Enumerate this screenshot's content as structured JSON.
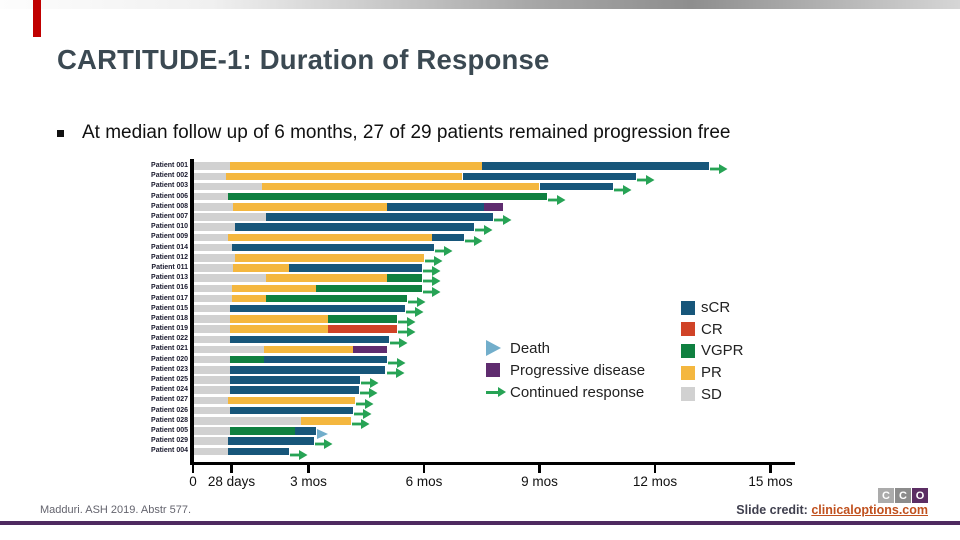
{
  "slide": {
    "title": "CARTITUDE-1: Duration of Response",
    "bullet": "At median follow up of 6 months, 27 of 29 patients remained progression free"
  },
  "chart_data": {
    "type": "bar",
    "subtype": "swimmer-plot",
    "x_axis": {
      "unit": "months",
      "min": 0,
      "max": 15.5,
      "ticks": [
        {
          "m": 0,
          "label": "0"
        },
        {
          "m": 1,
          "label": "28 days"
        },
        {
          "m": 3,
          "label": "3 mos"
        },
        {
          "m": 6,
          "label": "6 mos"
        },
        {
          "m": 9,
          "label": "9 mos"
        },
        {
          "m": 12,
          "label": "12 mos"
        },
        {
          "m": 15,
          "label": "15 mos"
        }
      ]
    },
    "colors": {
      "sCR": "#17567a",
      "CR": "#d04327",
      "VGPR": "#0f8040",
      "PR": "#f4b73f",
      "SD": "#d1d1d1",
      "PD": "#5f2c6f",
      "death": "#72aecb",
      "arrow": "#27a355"
    },
    "legend": [
      {
        "key": "sCR",
        "label": "sCR",
        "color": "#17567a"
      },
      {
        "key": "CR",
        "label": "CR",
        "color": "#d04327"
      },
      {
        "key": "VGPR",
        "label": "VGPR",
        "color": "#0f8040"
      },
      {
        "key": "PR",
        "label": "PR",
        "color": "#f4b73f"
      },
      {
        "key": "SD",
        "label": "SD",
        "color": "#d1d1d1"
      }
    ],
    "annotations": {
      "death": "Death",
      "pd": "Progressive disease",
      "cont": "Continued response"
    },
    "rows": [
      {
        "label": "Patient 001",
        "segments": [
          [
            "SD",
            0.95
          ],
          [
            "PR",
            7.5
          ],
          [
            "sCR",
            13.4
          ]
        ],
        "marker": "arrow"
      },
      {
        "label": "Patient 002",
        "segments": [
          [
            "SD",
            0.85
          ],
          [
            "PR",
            7.0
          ],
          [
            "sCR",
            11.5
          ]
        ],
        "marker": "arrow"
      },
      {
        "label": "Patient 003",
        "segments": [
          [
            "SD",
            1.8
          ],
          [
            "PR",
            9.0
          ],
          [
            "sCR",
            10.9
          ]
        ],
        "marker": "arrow"
      },
      {
        "label": "Patient 006",
        "segments": [
          [
            "SD",
            0.9
          ],
          [
            "VGPR",
            9.2
          ]
        ],
        "marker": "arrow"
      },
      {
        "label": "Patient 008",
        "segments": [
          [
            "SD",
            1.05
          ],
          [
            "PR",
            5.05
          ],
          [
            "sCR",
            7.55
          ],
          [
            "PD",
            8.05
          ]
        ],
        "marker": "none"
      },
      {
        "label": "Patient 007",
        "segments": [
          [
            "SD",
            1.9
          ],
          [
            "sCR",
            7.8
          ]
        ],
        "marker": "arrow"
      },
      {
        "label": "Patient 010",
        "segments": [
          [
            "SD",
            1.1
          ],
          [
            "sCR",
            7.3
          ]
        ],
        "marker": "arrow"
      },
      {
        "label": "Patient 009",
        "segments": [
          [
            "SD",
            0.9
          ],
          [
            "PR",
            6.2
          ],
          [
            "sCR",
            7.05
          ]
        ],
        "marker": "arrow"
      },
      {
        "label": "Patient 014",
        "segments": [
          [
            "SD",
            1.0
          ],
          [
            "sCR",
            6.25
          ]
        ],
        "marker": "arrow"
      },
      {
        "label": "Patient 012",
        "segments": [
          [
            "SD",
            1.1
          ],
          [
            "PR",
            6.0
          ]
        ],
        "marker": "arrow"
      },
      {
        "label": "Patient 011",
        "segments": [
          [
            "SD",
            1.05
          ],
          [
            "PR",
            2.5
          ],
          [
            "sCR",
            5.95
          ]
        ],
        "marker": "arrow"
      },
      {
        "label": "Patient 013",
        "segments": [
          [
            "SD",
            1.9
          ],
          [
            "PR",
            5.05
          ],
          [
            "VGPR",
            5.95
          ]
        ],
        "marker": "arrow"
      },
      {
        "label": "Patient 016",
        "segments": [
          [
            "SD",
            1.0
          ],
          [
            "PR",
            3.2
          ],
          [
            "VGPR",
            5.95
          ]
        ],
        "marker": "arrow"
      },
      {
        "label": "Patient 017",
        "segments": [
          [
            "SD",
            1.0
          ],
          [
            "PR",
            1.9
          ],
          [
            "VGPR",
            5.55
          ]
        ],
        "marker": "arrow"
      },
      {
        "label": "Patient 015",
        "segments": [
          [
            "SD",
            0.95
          ],
          [
            "sCR",
            5.5
          ]
        ],
        "marker": "arrow"
      },
      {
        "label": "Patient 018",
        "segments": [
          [
            "SD",
            0.95
          ],
          [
            "PR",
            3.5
          ],
          [
            "VGPR",
            5.3
          ]
        ],
        "marker": "arrow"
      },
      {
        "label": "Patient 019",
        "segments": [
          [
            "SD",
            0.95
          ],
          [
            "PR",
            3.5
          ],
          [
            "CR",
            5.3
          ]
        ],
        "marker": "arrow"
      },
      {
        "label": "Patient 022",
        "segments": [
          [
            "SD",
            0.95
          ],
          [
            "sCR",
            5.1
          ]
        ],
        "marker": "arrow"
      },
      {
        "label": "Patient 021",
        "segments": [
          [
            "SD",
            1.85
          ],
          [
            "PR",
            4.15
          ],
          [
            "PD",
            5.05
          ]
        ],
        "marker": "none"
      },
      {
        "label": "Patient 020",
        "segments": [
          [
            "SD",
            0.95
          ],
          [
            "VGPR",
            1.85
          ],
          [
            "sCR",
            5.05
          ]
        ],
        "marker": "arrow"
      },
      {
        "label": "Patient 023",
        "segments": [
          [
            "SD",
            0.95
          ],
          [
            "sCR",
            5.0
          ]
        ],
        "marker": "arrow"
      },
      {
        "label": "Patient 025",
        "segments": [
          [
            "SD",
            0.95
          ],
          [
            "sCR",
            4.35
          ]
        ],
        "marker": "arrow"
      },
      {
        "label": "Patient 024",
        "segments": [
          [
            "SD",
            0.95
          ],
          [
            "sCR",
            4.3
          ]
        ],
        "marker": "arrow"
      },
      {
        "label": "Patient 027",
        "segments": [
          [
            "SD",
            0.9
          ],
          [
            "PR",
            4.2
          ]
        ],
        "marker": "arrow"
      },
      {
        "label": "Patient 026",
        "segments": [
          [
            "SD",
            0.95
          ],
          [
            "sCR",
            4.15
          ]
        ],
        "marker": "arrow"
      },
      {
        "label": "Patient 028",
        "segments": [
          [
            "SD",
            2.8
          ],
          [
            "PR",
            4.1
          ]
        ],
        "marker": "arrow"
      },
      {
        "label": "Patient 005",
        "segments": [
          [
            "SD",
            0.95
          ],
          [
            "VGPR",
            2.65
          ],
          [
            "sCR",
            3.2
          ]
        ],
        "marker": "death"
      },
      {
        "label": "Patient 029",
        "segments": [
          [
            "SD",
            0.9
          ],
          [
            "sCR",
            3.15
          ]
        ],
        "marker": "arrow"
      },
      {
        "label": "Patient 004",
        "segments": [
          [
            "SD",
            0.9
          ],
          [
            "sCR",
            2.5
          ]
        ],
        "marker": "arrow"
      }
    ]
  },
  "footer": {
    "citation": "Madduri. ASH 2019. Abstr 577.",
    "credit_label": "Slide credit:",
    "credit_link": "clinicaloptions.com",
    "logo_letters": [
      "C",
      "C",
      "O"
    ]
  }
}
